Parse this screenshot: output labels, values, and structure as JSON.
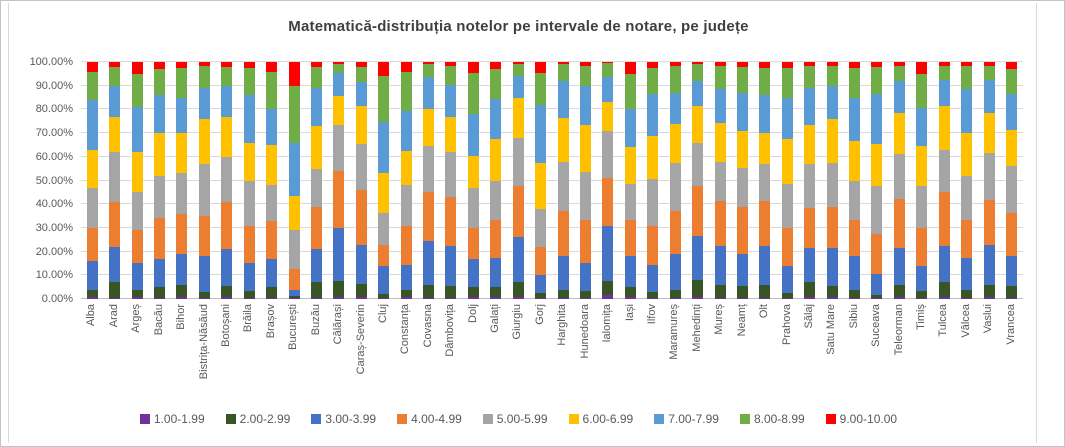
{
  "chart_data": {
    "type": "bar",
    "stacked": true,
    "units": "percent",
    "title": "Matematică-distribuția notelor pe intervale de notare, pe județe",
    "xlabel": "",
    "ylabel": "",
    "ylim": [
      0,
      100
    ],
    "grid": "horizontal",
    "legend_position": "bottom",
    "y_ticks": [
      "0.00%",
      "10.00%",
      "20.00%",
      "30.00%",
      "40.00%",
      "50.00%",
      "60.00%",
      "70.00%",
      "80.00%",
      "90.00%",
      "100.00%"
    ],
    "categories": [
      "Alba",
      "Arad",
      "Argeș",
      "Bacău",
      "Bihor",
      "Bistrița-Năsăud",
      "Botoșani",
      "Brăila",
      "Brașov",
      "București",
      "Buzău",
      "Călărași",
      "Caraș-Severin",
      "Cluj",
      "Constanța",
      "Covasna",
      "Dâmbovița",
      "Dolj",
      "Galați",
      "Giurgiu",
      "Gorj",
      "Harghita",
      "Hunedoara",
      "Ialomița",
      "Iași",
      "Ilfov",
      "Maramureș",
      "Mehedinți",
      "Mureș",
      "Neamț",
      "Olt",
      "Prahova",
      "Sălaj",
      "Satu Mare",
      "Sibiu",
      "Suceava",
      "Teleorman",
      "Timiș",
      "Tulcea",
      "Vâlcea",
      "Vaslui",
      "Vrancea"
    ],
    "series": [
      {
        "name": "1.00-1.99",
        "color": "#7030A0",
        "values": [
          1,
          0.5,
          1,
          0.5,
          1,
          0.5,
          1,
          0.5,
          0.5,
          0.3,
          0.5,
          1,
          1,
          0.5,
          1,
          0.5,
          0.5,
          1,
          1,
          1,
          0.5,
          0.5,
          0.5,
          1.5,
          1,
          0.5,
          0.5,
          1,
          0.5,
          0.5,
          0.5,
          0.5,
          1,
          1,
          0.5,
          0.3,
          1,
          0.5,
          1,
          0.5,
          1,
          0.5
        ]
      },
      {
        "name": "2.00-2.99",
        "color": "#375623",
        "values": [
          3,
          6.5,
          3,
          4.5,
          5,
          2.5,
          4.5,
          3,
          4.5,
          1,
          6.5,
          6.5,
          5.5,
          1.5,
          3,
          5.5,
          5,
          4,
          4,
          6,
          2,
          3.5,
          3,
          6,
          4,
          2.5,
          3.5,
          7,
          5.5,
          5,
          5.5,
          2,
          6,
          4.5,
          3.5,
          1.2,
          5,
          3,
          6,
          3.5,
          5,
          5
        ]
      },
      {
        "name": "3.00-3.99",
        "color": "#4472C4",
        "values": [
          12,
          15,
          11,
          12,
          13,
          15,
          15.5,
          11.5,
          12,
          2.7,
          14,
          22.5,
          16.5,
          12,
          10.5,
          18.5,
          17,
          12,
          12.5,
          19,
          7.5,
          14,
          11.5,
          23.5,
          13,
          11.5,
          15,
          18.5,
          16.5,
          13.5,
          16.5,
          11.5,
          14.5,
          16,
          14,
          9,
          15.5,
          10.5,
          15.5,
          13.5,
          17,
          12.5
        ]
      },
      {
        "name": "4.00-4.99",
        "color": "#ED7D31",
        "values": [
          14,
          19,
          14,
          17,
          17,
          17,
          20,
          16,
          16,
          8.5,
          18,
          24,
          23,
          9,
          16.5,
          20.5,
          20.5,
          13,
          16,
          21.5,
          12,
          19,
          18.5,
          20,
          15.5,
          16.5,
          18,
          21,
          19,
          20,
          19,
          16,
          17,
          17.5,
          15.5,
          17,
          20.5,
          16,
          22.5,
          16,
          19,
          18.5
        ]
      },
      {
        "name": "5.00-5.99",
        "color": "#A5A5A5",
        "values": [
          17,
          21,
          16,
          18,
          17,
          22,
          19,
          19,
          15,
          16.5,
          16,
          19.5,
          19.5,
          13.5,
          17,
          19.5,
          19,
          17,
          16.5,
          20.5,
          16,
          21,
          20,
          20,
          15,
          19.5,
          20.5,
          18.5,
          16.5,
          16.5,
          15.5,
          18.5,
          18.5,
          18.5,
          16.5,
          20,
          19,
          17.5,
          18,
          18.5,
          19.5,
          19.5
        ]
      },
      {
        "name": "6.00-6.99",
        "color": "#FFC000",
        "values": [
          16,
          15,
          17,
          18,
          17,
          19,
          17,
          16,
          17,
          14.5,
          18,
          12,
          16,
          16.5,
          14.5,
          15.5,
          15,
          13.5,
          17.5,
          17,
          19.5,
          18.5,
          20,
          12,
          15.5,
          18.5,
          16.5,
          15.5,
          16.5,
          15.5,
          13,
          19,
          16.5,
          18.5,
          16.5,
          18,
          17.5,
          17,
          18.5,
          18,
          17,
          15.5
        ]
      },
      {
        "name": "7.00-7.99",
        "color": "#5B9BD5",
        "values": [
          21,
          13,
          19,
          16,
          15,
          13,
          13,
          20,
          15,
          22.5,
          16,
          10,
          10,
          21.5,
          17,
          13.5,
          13.5,
          17.5,
          17,
          9,
          24.5,
          15.5,
          16.5,
          10.5,
          16,
          17.5,
          13,
          10.5,
          14,
          16,
          16,
          17.5,
          15.5,
          14,
          18.5,
          21,
          13.5,
          16,
          11,
          18.5,
          14,
          15
        ]
      },
      {
        "name": "8.00-8.99",
        "color": "#70AD47",
        "values": [
          12,
          8,
          14,
          11,
          12.5,
          9.5,
          8,
          11.5,
          16,
          24,
          9,
          3.5,
          6.5,
          19.5,
          16.5,
          5.5,
          8,
          17.5,
          12.5,
          5.3,
          13.5,
          7,
          8.5,
          5.9,
          15,
          11,
          11.3,
          7,
          9.8,
          11,
          11.5,
          12.5,
          9.3,
          8.5,
          12.5,
          11.5,
          6.3,
          14.5,
          6,
          9.8,
          6,
          10.5
        ]
      },
      {
        "name": "9.00-10.00",
        "color": "#FF0000",
        "values": [
          4,
          2,
          5,
          3,
          2.5,
          1.5,
          2,
          2.5,
          4,
          10,
          2,
          1,
          2,
          6,
          4,
          1,
          1.5,
          4.5,
          3,
          0.7,
          4.5,
          1,
          1.5,
          0.6,
          5,
          2.5,
          1.7,
          1,
          1.7,
          2,
          2.5,
          2.5,
          1.7,
          1.5,
          2.5,
          2,
          1.7,
          5,
          1.5,
          1.7,
          1.5,
          3
        ]
      }
    ]
  },
  "colors": {
    "gridline": "#d9d9d9",
    "axis_text": "#595959",
    "title_text": "#404040"
  }
}
